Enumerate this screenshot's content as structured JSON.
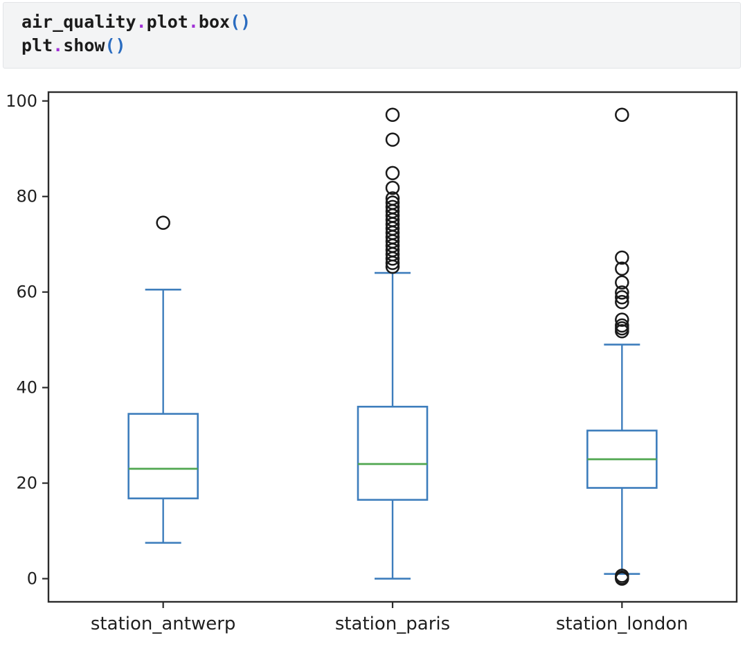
{
  "code_cell": {
    "language": "python",
    "lines": [
      [
        {
          "t": "air_quality",
          "c": "plain"
        },
        {
          "t": ".",
          "c": "op"
        },
        {
          "t": "plot",
          "c": "plain"
        },
        {
          "t": ".",
          "c": "op"
        },
        {
          "t": "box",
          "c": "plain"
        },
        {
          "t": "(",
          "c": "paren"
        },
        {
          "t": ")",
          "c": "paren"
        }
      ],
      [
        {
          "t": "plt",
          "c": "plain"
        },
        {
          "t": ".",
          "c": "op"
        },
        {
          "t": "show",
          "c": "plain"
        },
        {
          "t": "(",
          "c": "paren"
        },
        {
          "t": ")",
          "c": "paren"
        }
      ]
    ]
  },
  "chart_data": {
    "type": "boxplot",
    "title": "",
    "xlabel": "",
    "ylabel": "",
    "categories": [
      "station_antwerp",
      "station_paris",
      "station_london"
    ],
    "ylim": [
      -4.85,
      101.85
    ],
    "yticks": [
      0,
      20,
      40,
      60,
      80,
      100
    ],
    "grid": false,
    "legend": "none",
    "series": [
      {
        "name": "station_antwerp",
        "whisker_low": 7.5,
        "q1": 16.8,
        "median": 23.0,
        "q3": 34.5,
        "whisker_high": 60.5,
        "outliers": [
          74.5
        ]
      },
      {
        "name": "station_paris",
        "whisker_low": 0.0,
        "q1": 16.5,
        "median": 24.0,
        "q3": 36.0,
        "whisker_high": 64.0,
        "outliers": [
          97.1,
          91.9,
          84.9,
          81.8,
          79.6,
          78.7,
          77.8,
          76.9,
          76.0,
          75.1,
          74.2,
          73.3,
          72.4,
          71.5,
          70.6,
          69.7,
          68.8,
          67.9,
          67.0,
          66.1,
          65.3
        ]
      },
      {
        "name": "station_london",
        "whisker_low": 1.0,
        "q1": 19.0,
        "median": 25.0,
        "q3": 31.0,
        "whisker_high": 49.0,
        "outliers": [
          97.1,
          67.2,
          64.9,
          62.0,
          59.9,
          58.9,
          57.9,
          54.2,
          53.0,
          52.4,
          51.8,
          0.6,
          0.2,
          0.0
        ]
      }
    ],
    "colors": {
      "box": "#3d7dbc",
      "median": "#4fa64f",
      "outlier_stroke": "#1a1a1a",
      "axis": "#2b2b2b",
      "tick_text": "#1f1f1f",
      "cell_background": "#f3f4f5",
      "token_plain": "#1b1b1b",
      "token_operator": "#a02fd6",
      "token_paren": "#2a6cc0"
    }
  }
}
